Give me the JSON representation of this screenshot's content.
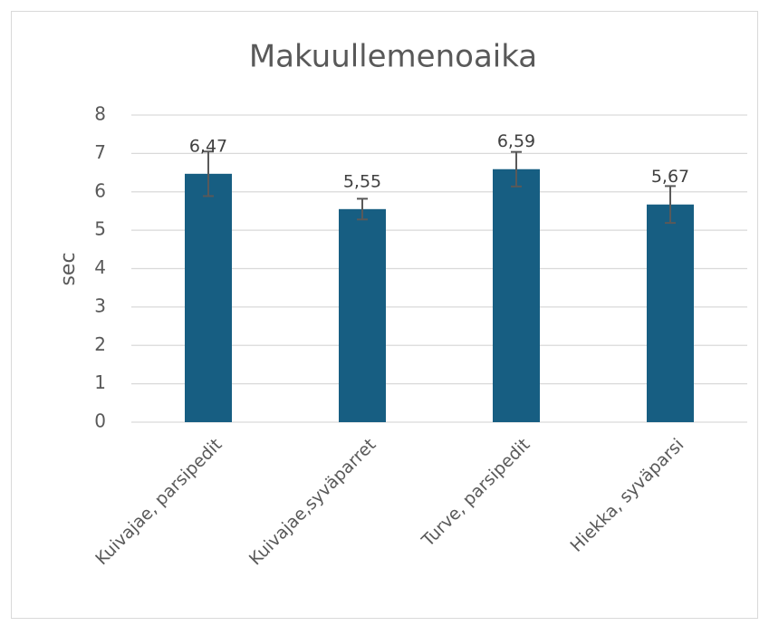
{
  "chart_data": {
    "type": "bar",
    "title": "Makuullemenoaika",
    "ylabel": "sec",
    "categories": [
      "Kuivajae, parsipedit",
      "Kuivajae,syväparret",
      "Turve, parsipedit",
      "Hiekka, syväparsi"
    ],
    "values": [
      6.47,
      5.55,
      6.59,
      5.67
    ],
    "value_labels": [
      "6,47",
      "5,55",
      "6,59",
      "5,67"
    ],
    "errors": [
      0.58,
      0.27,
      0.45,
      0.48
    ],
    "color": "#175e82",
    "error_color": "#595959",
    "ylim": [
      0,
      8
    ],
    "yticks": [
      0,
      1,
      2,
      3,
      4,
      5,
      6,
      7,
      8
    ],
    "grid": true
  }
}
